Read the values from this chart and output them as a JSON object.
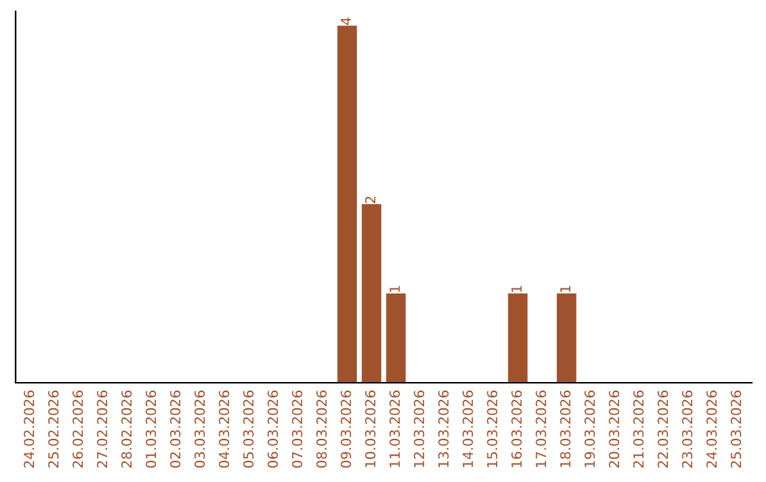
{
  "chart_data": {
    "type": "bar",
    "categories": [
      "24.02.2026",
      "25.02.2026",
      "26.02.2026",
      "27.02.2026",
      "28.02.2026",
      "01.03.2026",
      "02.03.2026",
      "03.03.2026",
      "04.03.2026",
      "05.03.2026",
      "06.03.2026",
      "07.03.2026",
      "08.03.2026",
      "09.03.2026",
      "10.03.2026",
      "11.03.2026",
      "12.03.2026",
      "13.03.2026",
      "14.03.2026",
      "15.03.2026",
      "16.03.2026",
      "17.03.2026",
      "18.03.2026",
      "19.03.2026",
      "20.03.2026",
      "21.03.2026",
      "22.03.2026",
      "23.03.2026",
      "24.03.2026",
      "25.03.2026"
    ],
    "values": [
      null,
      null,
      null,
      null,
      null,
      null,
      null,
      null,
      null,
      null,
      null,
      null,
      null,
      4,
      2,
      1,
      null,
      null,
      null,
      null,
      1,
      null,
      1,
      null,
      null,
      null,
      null,
      null,
      null,
      null
    ],
    "data_labels": true,
    "color": "#a0522d",
    "tick_labels": "x",
    "grid": false,
    "legend": false
  }
}
